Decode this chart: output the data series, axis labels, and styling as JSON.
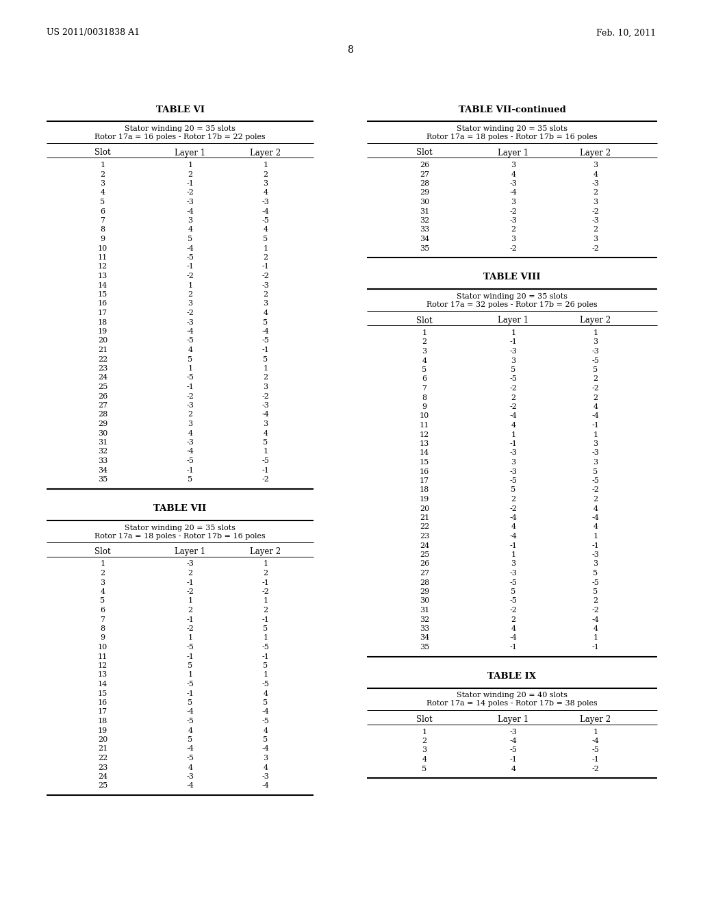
{
  "header_left": "US 2011/0031838 A1",
  "header_right": "Feb. 10, 2011",
  "page_number": "8",
  "background_color": "#ffffff",
  "table_vi": {
    "title": "TABLE VI",
    "subtitle1": "Stator winding 20 = 35 slots",
    "subtitle2": "Rotor 17a = 16 poles - Rotor 17b = 22 poles",
    "columns": [
      "Slot",
      "Layer 1",
      "Layer 2"
    ],
    "data": [
      [
        1,
        1,
        1
      ],
      [
        2,
        2,
        2
      ],
      [
        3,
        -1,
        3
      ],
      [
        4,
        -2,
        4
      ],
      [
        5,
        -3,
        -3
      ],
      [
        6,
        -4,
        -4
      ],
      [
        7,
        3,
        -5
      ],
      [
        8,
        4,
        4
      ],
      [
        9,
        5,
        5
      ],
      [
        10,
        -4,
        1
      ],
      [
        11,
        -5,
        2
      ],
      [
        12,
        -1,
        -1
      ],
      [
        13,
        -2,
        -2
      ],
      [
        14,
        1,
        -3
      ],
      [
        15,
        2,
        2
      ],
      [
        16,
        3,
        3
      ],
      [
        17,
        -2,
        4
      ],
      [
        18,
        -3,
        5
      ],
      [
        19,
        -4,
        -4
      ],
      [
        20,
        -5,
        -5
      ],
      [
        21,
        4,
        -1
      ],
      [
        22,
        5,
        5
      ],
      [
        23,
        1,
        1
      ],
      [
        24,
        -5,
        2
      ],
      [
        25,
        -1,
        3
      ],
      [
        26,
        -2,
        -2
      ],
      [
        27,
        -3,
        -3
      ],
      [
        28,
        2,
        -4
      ],
      [
        29,
        3,
        3
      ],
      [
        30,
        4,
        4
      ],
      [
        31,
        -3,
        5
      ],
      [
        32,
        -4,
        1
      ],
      [
        33,
        -5,
        -5
      ],
      [
        34,
        -1,
        -1
      ],
      [
        35,
        5,
        -2
      ]
    ]
  },
  "table_vii": {
    "title": "TABLE VII",
    "subtitle1": "Stator winding 20 = 35 slots",
    "subtitle2": "Rotor 17a = 18 poles - Rotor 17b = 16 poles",
    "columns": [
      "Slot",
      "Layer 1",
      "Layer 2"
    ],
    "data": [
      [
        1,
        -3,
        1
      ],
      [
        2,
        2,
        2
      ],
      [
        3,
        -1,
        -1
      ],
      [
        4,
        -2,
        -2
      ],
      [
        5,
        1,
        1
      ],
      [
        6,
        2,
        2
      ],
      [
        7,
        -1,
        -1
      ],
      [
        8,
        -2,
        5
      ],
      [
        9,
        1,
        1
      ],
      [
        10,
        -5,
        -5
      ],
      [
        11,
        -1,
        -1
      ],
      [
        12,
        5,
        5
      ],
      [
        13,
        1,
        1
      ],
      [
        14,
        -5,
        -5
      ],
      [
        15,
        -1,
        4
      ],
      [
        16,
        5,
        5
      ],
      [
        17,
        -4,
        -4
      ],
      [
        18,
        -5,
        -5
      ],
      [
        19,
        4,
        4
      ],
      [
        20,
        5,
        5
      ],
      [
        21,
        -4,
        -4
      ],
      [
        22,
        -5,
        3
      ],
      [
        23,
        4,
        4
      ],
      [
        24,
        -3,
        -3
      ],
      [
        25,
        -4,
        -4
      ]
    ]
  },
  "table_vii_cont": {
    "title": "TABLE VII-continued",
    "subtitle1": "Stator winding 20 = 35 slots",
    "subtitle2": "Rotor 17a = 18 poles - Rotor 17b = 16 poles",
    "columns": [
      "Slot",
      "Layer 1",
      "Layer 2"
    ],
    "data": [
      [
        26,
        3,
        3
      ],
      [
        27,
        4,
        4
      ],
      [
        28,
        -3,
        -3
      ],
      [
        29,
        -4,
        2
      ],
      [
        30,
        3,
        3
      ],
      [
        31,
        -2,
        -2
      ],
      [
        32,
        -3,
        -3
      ],
      [
        33,
        2,
        2
      ],
      [
        34,
        3,
        3
      ],
      [
        35,
        -2,
        -2
      ]
    ]
  },
  "table_viii": {
    "title": "TABLE VIII",
    "subtitle1": "Stator winding 20 = 35 slots",
    "subtitle2": "Rotor 17a = 32 poles - Rotor 17b = 26 poles",
    "columns": [
      "Slot",
      "Layer 1",
      "Layer 2"
    ],
    "data": [
      [
        1,
        1,
        1
      ],
      [
        2,
        -1,
        3
      ],
      [
        3,
        -3,
        -3
      ],
      [
        4,
        3,
        -5
      ],
      [
        5,
        5,
        5
      ],
      [
        6,
        -5,
        2
      ],
      [
        7,
        -2,
        -2
      ],
      [
        8,
        2,
        2
      ],
      [
        9,
        -2,
        4
      ],
      [
        10,
        -4,
        -4
      ],
      [
        11,
        4,
        -1
      ],
      [
        12,
        1,
        1
      ],
      [
        13,
        -1,
        3
      ],
      [
        14,
        -3,
        -3
      ],
      [
        15,
        3,
        3
      ],
      [
        16,
        -3,
        5
      ],
      [
        17,
        -5,
        -5
      ],
      [
        18,
        5,
        -2
      ],
      [
        19,
        2,
        2
      ],
      [
        20,
        -2,
        4
      ],
      [
        21,
        -4,
        -4
      ],
      [
        22,
        4,
        4
      ],
      [
        23,
        -4,
        1
      ],
      [
        24,
        -1,
        -1
      ],
      [
        25,
        1,
        -3
      ],
      [
        26,
        3,
        3
      ],
      [
        27,
        -3,
        5
      ],
      [
        28,
        -5,
        -5
      ],
      [
        29,
        5,
        5
      ],
      [
        30,
        -5,
        2
      ],
      [
        31,
        -2,
        -2
      ],
      [
        32,
        2,
        -4
      ],
      [
        33,
        4,
        4
      ],
      [
        34,
        -4,
        1
      ],
      [
        35,
        -1,
        -1
      ]
    ]
  },
  "table_ix": {
    "title": "TABLE IX",
    "subtitle1": "Stator winding 20 = 40 slots",
    "subtitle2": "Rotor 17a = 14 poles - Rotor 17b = 38 poles",
    "columns": [
      "Slot",
      "Layer 1",
      "Layer 2"
    ],
    "data": [
      [
        1,
        -3,
        1
      ],
      [
        2,
        -4,
        -4
      ],
      [
        3,
        -5,
        -5
      ],
      [
        4,
        -1,
        -1
      ],
      [
        5,
        4,
        -2
      ]
    ]
  }
}
